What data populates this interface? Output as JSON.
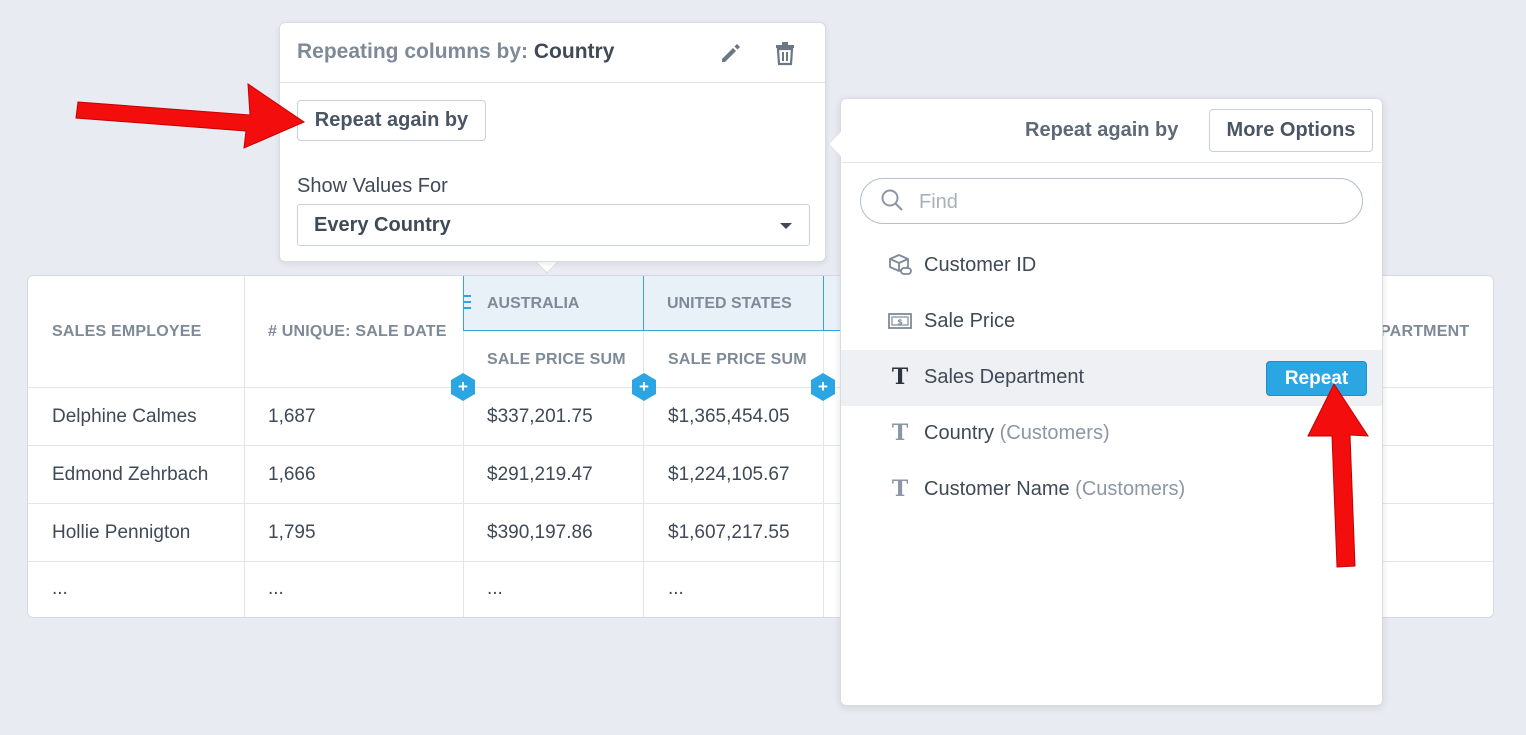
{
  "left_popover": {
    "title_prefix": "Repeating columns by:",
    "title_value": "Country",
    "repeat_again_button": "Repeat again by",
    "show_values_label": "Show Values For",
    "show_values_selected": "Every Country"
  },
  "right_popover": {
    "title": "Repeat again by",
    "more_options_button": "More Options",
    "search_placeholder": "Find",
    "items": [
      {
        "label": "Customer ID",
        "sub": "",
        "icon": "linked-box-icon"
      },
      {
        "label": "Sale Price",
        "sub": "",
        "icon": "money-icon"
      },
      {
        "label": "Sales Department",
        "sub": "",
        "icon": "text-type-icon",
        "action": "Repeat"
      },
      {
        "label": "Country",
        "sub": "(Customers)",
        "icon": "text-type-icon"
      },
      {
        "label": "Customer Name",
        "sub": "(Customers)",
        "icon": "text-type-icon"
      }
    ]
  },
  "table": {
    "headers": {
      "sales_employee": "SALES EMPLOYEE",
      "unique_sale_date": "# UNIQUE: SALE DATE",
      "group_1": "AUSTRALIA",
      "group_2": "UNITED STATES",
      "sub_1": "SALE PRICE SUM",
      "sub_2": "SALE PRICE SUM",
      "partial_right": "PARTMENT"
    },
    "rows": [
      {
        "employee": "Delphine Calmes",
        "unique": "1,687",
        "au": "$337,201.75",
        "us": "$1,365,454.05"
      },
      {
        "employee": "Edmond Zehrbach",
        "unique": "1,666",
        "au": "$291,219.47",
        "us": "$1,224,105.67"
      },
      {
        "employee": "Hollie Pennigton",
        "unique": "1,795",
        "au": "$390,197.86",
        "us": "$1,607,217.55"
      },
      {
        "employee": "...",
        "unique": "...",
        "au": "...",
        "us": "..."
      }
    ]
  },
  "colors": {
    "accent": "#2ca6e3",
    "annotation_arrow": "#f40d0d",
    "background": "#e8ebf1"
  }
}
